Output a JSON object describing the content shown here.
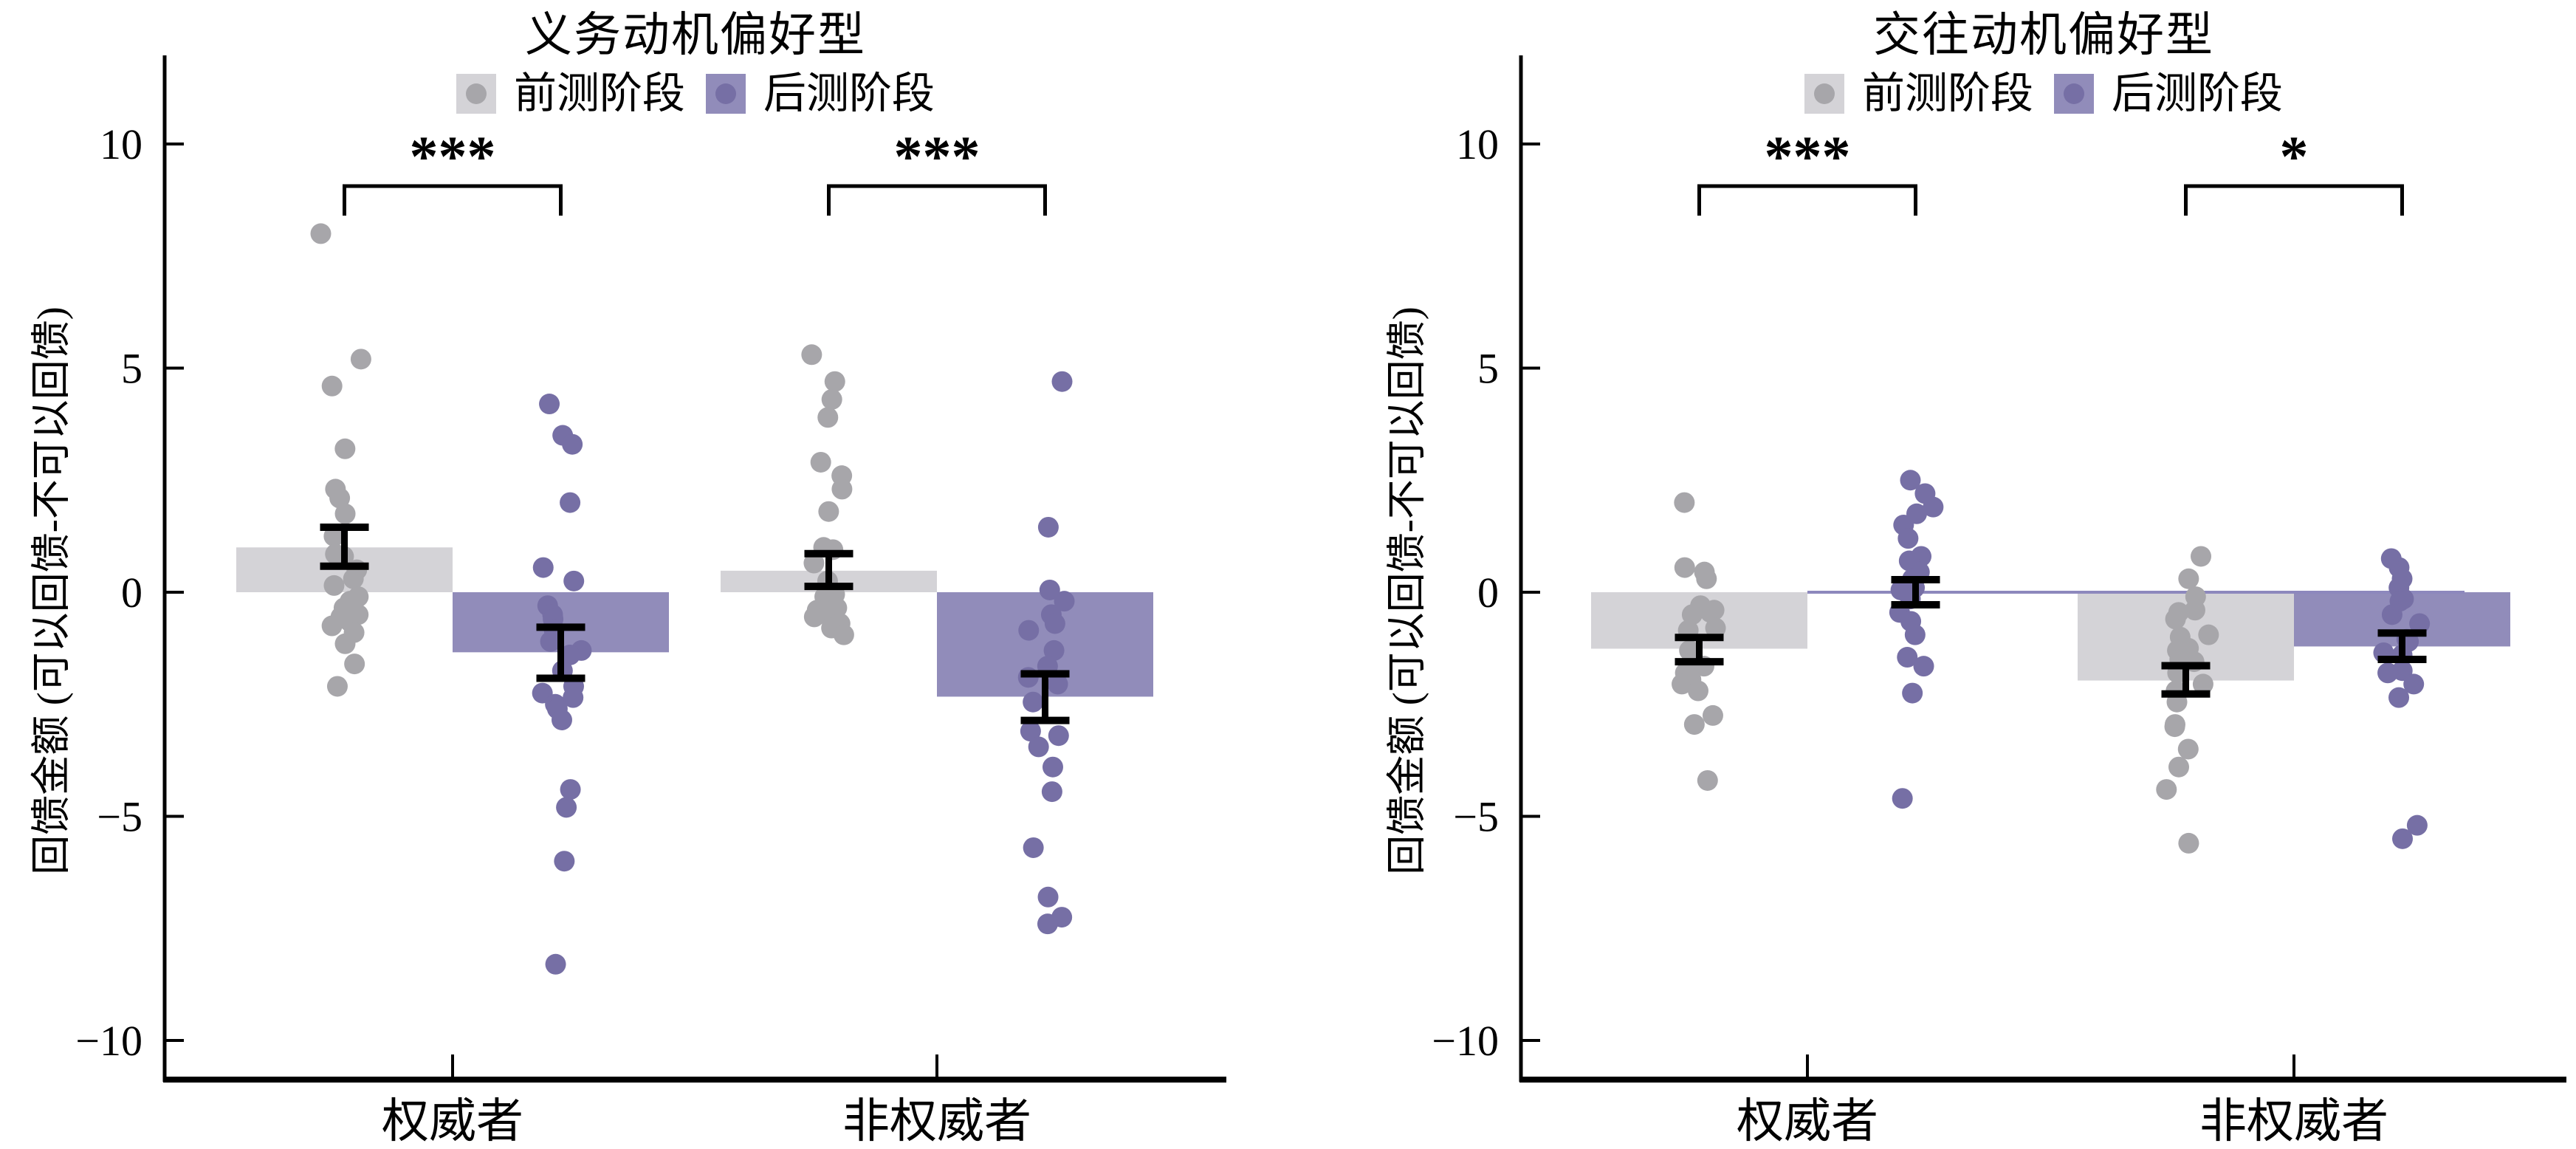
{
  "legend": {
    "pretest": "前测阶段",
    "posttest": "后测阶段"
  },
  "y_axis": {
    "label": "回馈金额 (可以回馈-不可以回馈)",
    "ticks": [
      10,
      5,
      0,
      -5,
      -10
    ]
  },
  "x_categories": [
    "权威者",
    "非权威者"
  ],
  "colors": {
    "pretest_bar": "#d4d3d7",
    "pretest_dot": "#a7a6aa",
    "posttest_bar": "#918cba",
    "posttest_dot": "#766fa5",
    "zero_line": "#8d88bd",
    "axis": "#000000",
    "background": "#ffffff"
  },
  "chart_data": [
    {
      "type": "bar",
      "title": "义务动机偏好型",
      "categories": [
        "权威者",
        "非权威者"
      ],
      "ylabel": "回馈金额 (可以回馈-不可以回馈)",
      "ylim": [
        -11,
        11
      ],
      "yticks": [
        10,
        5,
        0,
        -5,
        -10
      ],
      "legend_position": "top",
      "grid": false,
      "significance": [
        "***",
        "***"
      ],
      "zero_line": false,
      "series": [
        {
          "name": "前测阶段",
          "means": [
            1.0,
            0.48
          ],
          "ci": [
            [
              0.58,
              1.45
            ],
            [
              0.13,
              0.86
            ]
          ],
          "points": [
            [
              8.0,
              5.2,
              4.6,
              3.2,
              2.3,
              2.1,
              1.75,
              1.25,
              0.85,
              0.8,
              0.5,
              0.3,
              0.15,
              -0.1,
              -0.2,
              -0.35,
              -0.5,
              -0.55,
              -0.65,
              -0.75,
              -0.9,
              -1.15,
              -1.6,
              -2.1
            ],
            [
              5.3,
              4.7,
              4.3,
              3.9,
              2.9,
              2.6,
              2.3,
              1.8,
              1.0,
              0.95,
              0.65,
              0.25,
              -0.05,
              -0.1,
              -0.35,
              -0.4,
              -0.5,
              -0.55,
              -0.7,
              -0.8,
              -0.95
            ]
          ]
        },
        {
          "name": "后测阶段",
          "means": [
            -1.34,
            -2.33
          ],
          "ci": [
            [
              -1.92,
              -0.78
            ],
            [
              -2.86,
              -1.82
            ]
          ],
          "points": [
            [
              4.2,
              3.5,
              3.3,
              2.0,
              0.55,
              0.25,
              -0.3,
              -0.5,
              -0.6,
              -0.85,
              -1.1,
              -1.3,
              -1.4,
              -1.75,
              -2.1,
              -2.25,
              -2.35,
              -2.5,
              -2.6,
              -2.85,
              -4.4,
              -4.8,
              -6.0,
              -8.3
            ],
            [
              4.7,
              1.45,
              0.05,
              -0.2,
              -0.5,
              -0.7,
              -0.85,
              -1.3,
              -1.65,
              -1.9,
              -2.05,
              -2.45,
              -3.1,
              -3.2,
              -3.45,
              -3.9,
              -4.45,
              -5.7,
              -6.8,
              -7.25,
              -7.4
            ]
          ]
        }
      ]
    },
    {
      "type": "bar",
      "title": "交往动机偏好型",
      "categories": [
        "权威者",
        "非权威者"
      ],
      "ylabel": "回馈金额 (可以回馈-不可以回馈)",
      "ylim": [
        -11,
        11
      ],
      "yticks": [
        10,
        5,
        0,
        -5,
        -10
      ],
      "legend_position": "top",
      "grid": false,
      "significance": [
        "***",
        "*"
      ],
      "zero_line": true,
      "series": [
        {
          "name": "前测阶段",
          "means": [
            -1.26,
            -1.97
          ],
          "ci": [
            [
              -1.55,
              -1.01
            ],
            [
              -2.27,
              -1.64
            ]
          ],
          "points": [
            [
              2.0,
              0.55,
              0.45,
              0.3,
              -0.3,
              -0.4,
              -0.45,
              -0.5,
              -0.8,
              -0.85,
              -1.3,
              -1.6,
              -1.65,
              -1.8,
              -1.95,
              -2.05,
              -2.2,
              -2.75,
              -2.95,
              -4.2
            ],
            [
              0.8,
              0.3,
              -0.1,
              -0.4,
              -0.45,
              -0.6,
              -0.95,
              -1.0,
              -1.25,
              -1.3,
              -1.5,
              -1.55,
              -1.8,
              -2.05,
              -2.2,
              -2.45,
              -2.95,
              -3.0,
              -3.5,
              -3.9,
              -4.4,
              -5.6
            ]
          ]
        },
        {
          "name": "后测阶段",
          "means": [
            -0.03,
            -1.21
          ],
          "ci": [
            [
              -0.28,
              0.28
            ],
            [
              -1.5,
              -0.91
            ]
          ],
          "points": [
            [
              2.5,
              2.2,
              1.9,
              1.75,
              1.5,
              1.2,
              0.8,
              0.7,
              0.45,
              0.3,
              0.1,
              0.05,
              -0.15,
              -0.45,
              -0.65,
              -0.95,
              -1.45,
              -1.65,
              -2.25,
              -4.6
            ],
            [
              0.75,
              0.55,
              0.3,
              0.1,
              -0.15,
              -0.2,
              -0.5,
              -0.7,
              -1.05,
              -1.1,
              -1.35,
              -1.4,
              -1.75,
              -1.8,
              -2.05,
              -2.35,
              -5.2,
              -5.5
            ]
          ]
        }
      ]
    }
  ]
}
